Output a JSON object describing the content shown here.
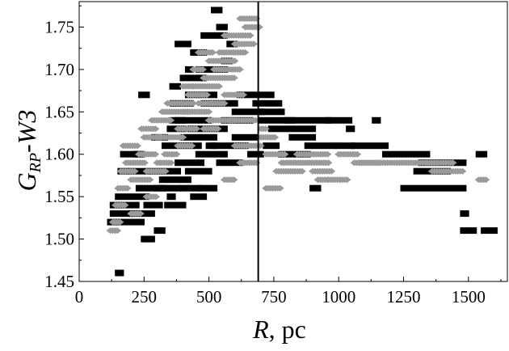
{
  "chart_data": {
    "type": "scatter",
    "title": "",
    "xlabel_var": "R",
    "xlabel_unit": ", pc",
    "ylabel_main": "G",
    "ylabel_sub": "RP",
    "ylabel_tail": "-W3",
    "xlim": [
      0,
      1650
    ],
    "ylim": [
      1.45,
      1.78
    ],
    "xticks": [
      0,
      250,
      500,
      750,
      1000,
      1250,
      1500
    ],
    "yticks": [
      1.45,
      1.5,
      1.55,
      1.6,
      1.65,
      1.7,
      1.75
    ],
    "ytick_labels": [
      "1.45",
      "1.50",
      "1.55",
      "1.60",
      "1.65",
      "1.70",
      "1.75"
    ],
    "vertical_line_x": 690,
    "grid": false,
    "series": [
      {
        "marker": "square",
        "color": "#000000",
        "segments": [
          [
            120,
            240,
            1.52
          ],
          [
            130,
            200,
            1.53
          ],
          [
            130,
            220,
            1.54
          ],
          [
            150,
            260,
            1.55
          ],
          [
            160,
            180,
            1.58
          ],
          [
            170,
            230,
            1.6
          ],
          [
            230,
            320,
            1.56
          ],
          [
            200,
            260,
            1.58
          ],
          [
            280,
            380,
            1.58
          ],
          [
            260,
            310,
            1.54
          ],
          [
            200,
            280,
            1.53
          ],
          [
            250,
            270,
            1.5
          ],
          [
            340,
            400,
            1.54
          ],
          [
            300,
            380,
            1.56
          ],
          [
            320,
            420,
            1.57
          ],
          [
            400,
            460,
            1.56
          ],
          [
            440,
            480,
            1.55
          ],
          [
            470,
            520,
            1.56
          ],
          [
            380,
            470,
            1.59
          ],
          [
            460,
            560,
            1.6
          ],
          [
            330,
            460,
            1.61
          ],
          [
            400,
            520,
            1.62
          ],
          [
            380,
            500,
            1.64
          ],
          [
            360,
            430,
            1.66
          ],
          [
            420,
            520,
            1.67
          ],
          [
            400,
            480,
            1.69
          ],
          [
            460,
            560,
            1.7
          ],
          [
            480,
            600,
            1.66
          ],
          [
            430,
            560,
            1.63
          ],
          [
            520,
            640,
            1.61
          ],
          [
            560,
            660,
            1.64
          ],
          [
            600,
            700,
            1.65
          ],
          [
            620,
            740,
            1.67
          ],
          [
            680,
            770,
            1.66
          ],
          [
            700,
            780,
            1.65
          ],
          [
            700,
            820,
            1.64
          ],
          [
            740,
            900,
            1.63
          ],
          [
            800,
            960,
            1.64
          ],
          [
            960,
            1040,
            1.64
          ],
          [
            780,
            880,
            1.6
          ],
          [
            820,
            900,
            1.62
          ],
          [
            880,
            980,
            1.61
          ],
          [
            1000,
            1050,
            1.61
          ],
          [
            1060,
            1180,
            1.61
          ],
          [
            1180,
            1340,
            1.6
          ],
          [
            1320,
            1480,
            1.59
          ],
          [
            1300,
            1420,
            1.58
          ],
          [
            1250,
            1480,
            1.56
          ],
          [
            1480,
            1520,
            1.51
          ],
          [
            1560,
            1600,
            1.51
          ],
          [
            1540,
            1560,
            1.6
          ],
          [
            1480,
            1490,
            1.53
          ],
          [
            900,
            920,
            1.56
          ],
          [
            1140,
            1150,
            1.64
          ],
          [
            1040,
            1050,
            1.63
          ],
          [
            480,
            560,
            1.74
          ],
          [
            440,
            480,
            1.72
          ],
          [
            420,
            430,
            1.7
          ],
          [
            580,
            600,
            1.73
          ],
          [
            540,
            560,
            1.75
          ],
          [
            220,
            240,
            1.6
          ],
          [
            360,
            400,
            1.64
          ],
          [
            540,
            620,
            1.59
          ],
          [
            600,
            680,
            1.62
          ],
          [
            660,
            700,
            1.6
          ],
          [
            720,
            760,
            1.61
          ],
          [
            150,
            160,
            1.46
          ],
          [
            260,
            280,
            1.5
          ],
          [
            360,
            380,
            1.68
          ],
          [
            240,
            260,
            1.67
          ],
          [
            350,
            360,
            1.55
          ],
          [
            300,
            320,
            1.51
          ],
          [
            500,
            520,
            1.61
          ],
          [
            520,
            540,
            1.77
          ],
          [
            560,
            580,
            1.71
          ],
          [
            380,
            420,
            1.73
          ],
          [
            420,
            500,
            1.58
          ],
          [
            350,
            400,
            1.63
          ],
          [
            290,
            330,
            1.62
          ]
        ]
      },
      {
        "marker": "diamond",
        "color": "#9a9a9a",
        "segments": [
          [
            120,
            150,
            1.51
          ],
          [
            130,
            160,
            1.52
          ],
          [
            140,
            180,
            1.54
          ],
          [
            150,
            190,
            1.56
          ],
          [
            160,
            220,
            1.58
          ],
          [
            170,
            230,
            1.61
          ],
          [
            180,
            260,
            1.59
          ],
          [
            200,
            280,
            1.57
          ],
          [
            230,
            300,
            1.6
          ],
          [
            260,
            340,
            1.58
          ],
          [
            250,
            320,
            1.62
          ],
          [
            240,
            300,
            1.63
          ],
          [
            280,
            360,
            1.64
          ],
          [
            300,
            400,
            1.62
          ],
          [
            320,
            420,
            1.65
          ],
          [
            340,
            440,
            1.66
          ],
          [
            380,
            460,
            1.63
          ],
          [
            400,
            500,
            1.65
          ],
          [
            420,
            500,
            1.67
          ],
          [
            440,
            540,
            1.68
          ],
          [
            460,
            560,
            1.66
          ],
          [
            480,
            600,
            1.69
          ],
          [
            500,
            600,
            1.71
          ],
          [
            520,
            620,
            1.7
          ],
          [
            540,
            640,
            1.72
          ],
          [
            560,
            660,
            1.74
          ],
          [
            600,
            680,
            1.73
          ],
          [
            620,
            690,
            1.76
          ],
          [
            640,
            700,
            1.75
          ],
          [
            460,
            520,
            1.72
          ],
          [
            440,
            480,
            1.7
          ],
          [
            400,
            440,
            1.68
          ],
          [
            560,
            640,
            1.67
          ],
          [
            580,
            680,
            1.64
          ],
          [
            600,
            700,
            1.61
          ],
          [
            620,
            690,
            1.59
          ],
          [
            700,
            760,
            1.62
          ],
          [
            720,
            800,
            1.6
          ],
          [
            760,
            860,
            1.58
          ],
          [
            780,
            960,
            1.59
          ],
          [
            840,
            960,
            1.6
          ],
          [
            900,
            980,
            1.58
          ],
          [
            960,
            1040,
            1.57
          ],
          [
            1000,
            1080,
            1.6
          ],
          [
            1060,
            1160,
            1.59
          ],
          [
            1080,
            1440,
            1.59
          ],
          [
            1360,
            1480,
            1.58
          ],
          [
            1540,
            1570,
            1.57
          ],
          [
            920,
            960,
            1.57
          ],
          [
            700,
            720,
            1.63
          ],
          [
            720,
            780,
            1.56
          ],
          [
            560,
            600,
            1.57
          ],
          [
            300,
            360,
            1.59
          ],
          [
            380,
            440,
            1.61
          ],
          [
            480,
            540,
            1.63
          ],
          [
            500,
            600,
            1.64
          ],
          [
            330,
            380,
            1.6
          ],
          [
            260,
            300,
            1.55
          ],
          [
            200,
            240,
            1.53
          ]
        ]
      }
    ]
  }
}
